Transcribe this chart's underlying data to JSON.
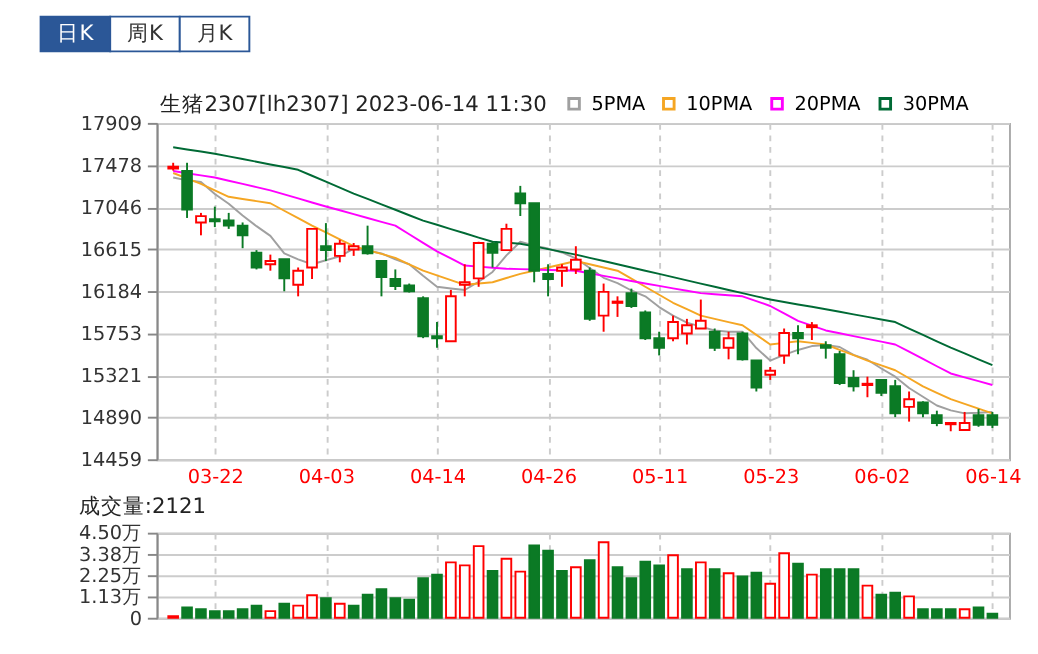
{
  "chart_data": [
    {
      "type": "candlestick",
      "title": "生猪2307[lh2307] 2023-06-14 11:30",
      "annotations": [
        "日K",
        "周K",
        "月K"
      ],
      "categories": [
        null,
        null,
        null,
        "03-22",
        null,
        null,
        null,
        null,
        null,
        null,
        null,
        "04-03",
        null,
        null,
        null,
        null,
        null,
        null,
        null,
        "04-14",
        null,
        null,
        null,
        null,
        null,
        null,
        null,
        "04-26",
        null,
        null,
        null,
        null,
        null,
        null,
        null,
        "05-11",
        null,
        null,
        null,
        null,
        null,
        null,
        null,
        "05-23",
        null,
        null,
        null,
        null,
        null,
        null,
        null,
        "06-02",
        null,
        null,
        null,
        null,
        null,
        null,
        null,
        "06-14"
      ],
      "ohlc": [
        [
          17440,
          17500,
          17420,
          17460
        ],
        [
          17415,
          17500,
          16934,
          17020
        ],
        [
          16888,
          16986,
          16756,
          16953
        ],
        [
          16920,
          17050,
          16840,
          16900
        ],
        [
          16907,
          16986,
          16822,
          16855
        ],
        [
          16855,
          16888,
          16624,
          16756
        ],
        [
          16578,
          16604,
          16406,
          16426
        ],
        [
          16459,
          16558,
          16393,
          16492
        ],
        [
          16512,
          16512,
          16182,
          16314
        ],
        [
          16248,
          16426,
          16130,
          16393
        ],
        [
          16426,
          16822,
          16307,
          16822
        ],
        [
          16644,
          16881,
          16492,
          16604
        ],
        [
          16545,
          16710,
          16479,
          16670
        ],
        [
          16611,
          16677,
          16545,
          16644
        ],
        [
          16644,
          16855,
          16558,
          16571
        ],
        [
          16492,
          16492,
          16130,
          16327
        ],
        [
          16307,
          16406,
          16195,
          16235
        ],
        [
          16241,
          16261,
          16169,
          16182
        ],
        [
          16110,
          16130,
          15701,
          15721
        ],
        [
          15721,
          15866,
          15603,
          15701
        ],
        [
          15669,
          16196,
          15669,
          16130
        ],
        [
          16248,
          16459,
          16130,
          16274
        ],
        [
          16314,
          16690,
          16228,
          16677
        ],
        [
          16670,
          16690,
          16426,
          16578
        ],
        [
          16604,
          16875,
          16604,
          16822
        ],
        [
          17184,
          17263,
          16954,
          17085
        ],
        [
          17085,
          17085,
          16274,
          16393
        ],
        [
          16360,
          16459,
          16130,
          16307
        ],
        [
          16393,
          16459,
          16228,
          16426
        ],
        [
          16406,
          16644,
          16360,
          16505
        ],
        [
          16393,
          16426,
          15879,
          15899
        ],
        [
          15932,
          16261,
          15767,
          16176
        ],
        [
          16063,
          16130,
          15919,
          16076
        ],
        [
          16163,
          16209,
          16011,
          16031
        ],
        [
          15965,
          15985,
          15682,
          15701
        ],
        [
          15701,
          15767,
          15524,
          15603
        ],
        [
          15701,
          15932,
          15669,
          15866
        ],
        [
          15748,
          15899,
          15636,
          15833
        ],
        [
          15800,
          16097,
          15800,
          15879
        ],
        [
          15767,
          15800,
          15570,
          15603
        ],
        [
          15603,
          15767,
          15484,
          15701
        ],
        [
          15748,
          15767,
          15471,
          15484
        ],
        [
          15471,
          15471,
          15154,
          15194
        ],
        [
          15326,
          15405,
          15273,
          15366
        ],
        [
          15524,
          15800,
          15438,
          15754
        ],
        [
          15754,
          15833,
          15537,
          15701
        ],
        [
          15814,
          15866,
          15682,
          15833
        ],
        [
          15629,
          15669,
          15491,
          15603
        ],
        [
          15537,
          15570,
          15220,
          15240
        ],
        [
          15293,
          15372,
          15154,
          15207
        ],
        [
          15220,
          15306,
          15095,
          15233
        ],
        [
          15273,
          15273,
          15108,
          15141
        ],
        [
          15207,
          15273,
          14891,
          14930
        ],
        [
          14996,
          15154,
          14845,
          15075
        ],
        [
          15042,
          15055,
          14891,
          14930
        ],
        [
          14910,
          14957,
          14798,
          14831
        ],
        [
          14818,
          14831,
          14746,
          14831
        ],
        [
          14759,
          14944,
          14759,
          14831
        ],
        [
          14910,
          14976,
          14792,
          14812
        ],
        [
          14910,
          14944,
          14779,
          14812
        ]
      ],
      "colors": [
        "#ff0000",
        "#0b7a25",
        "#ff0000",
        "#0b7a25",
        "#0b7a25",
        "#0b7a25",
        "#0b7a25",
        "#ff0000",
        "#0b7a25",
        "#ff0000",
        "#ff0000",
        "#0b7a25",
        "#ff0000",
        "#ff0000",
        "#0b7a25",
        "#0b7a25",
        "#0b7a25",
        "#0b7a25",
        "#0b7a25",
        "#0b7a25",
        "#ff0000",
        "#ff0000",
        "#ff0000",
        "#0b7a25",
        "#ff0000",
        "#0b7a25",
        "#0b7a25",
        "#0b7a25",
        "#ff0000",
        "#ff0000",
        "#0b7a25",
        "#ff0000",
        "#ff0000",
        "#0b7a25",
        "#0b7a25",
        "#0b7a25",
        "#ff0000",
        "#ff0000",
        "#ff0000",
        "#0b7a25",
        "#ff0000",
        "#0b7a25",
        "#0b7a25",
        "#ff0000",
        "#ff0000",
        "#0b7a25",
        "#ff0000",
        "#0b7a25",
        "#0b7a25",
        "#0b7a25",
        "#ff0000",
        "#0b7a25",
        "#0b7a25",
        "#ff0000",
        "#0b7a25",
        "#0b7a25",
        "#ff0000",
        "#ff0000",
        "#0b7a25",
        "#0b7a25"
      ],
      "series": [
        {
          "name": "5PMA",
          "type": "line",
          "color": "#a0a0a0",
          "values": [
            17349,
            17320,
            17303,
            17180,
            17080,
            16960,
            16850,
            16750,
            16570,
            16510,
            16459,
            16500,
            16540,
            16620,
            16600,
            16570,
            16510,
            16459,
            16340,
            16228,
            16210,
            16195,
            16280,
            16380,
            16550,
            16690,
            16650,
            16620,
            16580,
            16520,
            16420,
            16320,
            16265,
            16190,
            16130,
            16020,
            15932,
            15860,
            15820,
            15780,
            15767,
            15767,
            15600,
            15471,
            15530,
            15580,
            15620,
            15630,
            15610,
            15530,
            15480,
            15390,
            15306,
            15190,
            15100,
            15010,
            14960,
            14930,
            14935,
            14944
          ]
        },
        {
          "name": "10PMA",
          "type": "line",
          "color": "#f5a623",
          "values": [
            17395,
            17339,
            17283,
            17217,
            17151,
            17129,
            17107,
            17085,
            17008,
            16932,
            16855,
            16785,
            16714,
            16644,
            16604,
            16565,
            16525,
            16459,
            16393,
            16345,
            16296,
            16248,
            16262,
            16275,
            16318,
            16360,
            16393,
            16426,
            16459,
            16492,
            16459,
            16426,
            16393,
            16311,
            16228,
            16146,
            16064,
            15998,
            15932,
            15899,
            15866,
            15833,
            15735,
            15636,
            15653,
            15669,
            15653,
            15636,
            15581,
            15526,
            15471,
            15422,
            15372,
            15290,
            15207,
            15141,
            15075,
            15027,
            14978,
            14930
          ]
        },
        {
          "name": "20PMA",
          "type": "line",
          "color": "#ff00ff",
          "values": [
            17415,
            17393,
            17371,
            17349,
            17316,
            17283,
            17250,
            17217,
            17176,
            17135,
            17093,
            17052,
            17013,
            16973,
            16934,
            16894,
            16855,
            16767,
            16679,
            16591,
            16519,
            16446,
            16435,
            16424,
            16413,
            16409,
            16405,
            16401,
            16397,
            16393,
            16367,
            16340,
            16314,
            16287,
            16261,
            16237,
            16212,
            16188,
            16163,
            16152,
            16141,
            16130,
            16081,
            16031,
            15955,
            15879,
            15830,
            15780,
            15751,
            15722,
            15694,
            15665,
            15636,
            15562,
            15488,
            15413,
            15339,
            15299,
            15260,
            15220
          ]
        },
        {
          "name": "30PMA",
          "type": "line",
          "color": "#006a35",
          "values": [
            17659,
            17637,
            17615,
            17593,
            17566,
            17538,
            17511,
            17483,
            17456,
            17428,
            17367,
            17306,
            17245,
            17184,
            17129,
            17073,
            17018,
            16962,
            16907,
            16864,
            16820,
            16777,
            16733,
            16690,
            16680,
            16670,
            16642,
            16614,
            16586,
            16558,
            16525,
            16492,
            16459,
            16426,
            16393,
            16360,
            16327,
            16294,
            16261,
            16228,
            16195,
            16163,
            16130,
            16097,
            16072,
            16047,
            16023,
            15998,
            15972,
            15945,
            15919,
            15892,
            15866,
            15800,
            15735,
            15669,
            15603,
            15544,
            15484,
            15425
          ]
        }
      ],
      "ylim": [
        14459,
        17909
      ],
      "yticks": [
        14459,
        14890,
        15321,
        15753,
        16184,
        16615,
        17046,
        17478,
        17909
      ],
      "grid": true,
      "legend": "top right"
    },
    {
      "type": "bar",
      "title": "成交量:2121",
      "categories": [
        null,
        null,
        null,
        null,
        null,
        null,
        null,
        null,
        null,
        null,
        null,
        null,
        null,
        null,
        null,
        null,
        null,
        null,
        null,
        null,
        null,
        null,
        null,
        null,
        null,
        null,
        null,
        null,
        null,
        null,
        null,
        null,
        null,
        null,
        null,
        null,
        null,
        null,
        null,
        null,
        null,
        null,
        null,
        null,
        null,
        null,
        null,
        null,
        null,
        null,
        null,
        null,
        null,
        null,
        null,
        null,
        null,
        null,
        null,
        null
      ],
      "values": [
        0.08,
        0.55,
        0.45,
        0.35,
        0.35,
        0.45,
        0.64,
        0.35,
        0.74,
        0.64,
        1.19,
        1.03,
        0.74,
        0.64,
        1.22,
        1.51,
        1.03,
        0.96,
        2.09,
        2.28,
        2.93,
        2.77,
        3.79,
        2.48,
        3.12,
        2.44,
        3.83,
        3.54,
        2.48,
        2.67,
        3.05,
        3.99,
        2.67,
        2.09,
        2.96,
        2.77,
        3.31,
        2.57,
        2.93,
        2.57,
        2.35,
        2.19,
        2.38,
        1.8,
        3.41,
        2.86,
        2.28,
        2.57,
        2.57,
        2.57,
        1.7,
        1.22,
        1.32,
        1.13,
        0.45,
        0.45,
        0.45,
        0.45,
        0.55,
        0.21
      ],
      "colors": [
        "#ff0000",
        "#0b7a25",
        "#0b7a25",
        "#0b7a25",
        "#0b7a25",
        "#0b7a25",
        "#0b7a25",
        "#ff0000",
        "#0b7a25",
        "#ff0000",
        "#ff0000",
        "#0b7a25",
        "#ff0000",
        "#0b7a25",
        "#0b7a25",
        "#0b7a25",
        "#0b7a25",
        "#0b7a25",
        "#0b7a25",
        "#0b7a25",
        "#ff0000",
        "#ff0000",
        "#ff0000",
        "#0b7a25",
        "#ff0000",
        "#ff0000",
        "#0b7a25",
        "#0b7a25",
        "#0b7a25",
        "#ff0000",
        "#0b7a25",
        "#ff0000",
        "#0b7a25",
        "#0b7a25",
        "#0b7a25",
        "#0b7a25",
        "#ff0000",
        "#0b7a25",
        "#ff0000",
        "#0b7a25",
        "#ff0000",
        "#0b7a25",
        "#0b7a25",
        "#ff0000",
        "#ff0000",
        "#0b7a25",
        "#ff0000",
        "#0b7a25",
        "#0b7a25",
        "#0b7a25",
        "#ff0000",
        "#0b7a25",
        "#0b7a25",
        "#ff0000",
        "#0b7a25",
        "#0b7a25",
        "#0b7a25",
        "#ff0000",
        "#0b7a25",
        "#0b7a25"
      ],
      "ylim": [
        0,
        4.5
      ],
      "yticks": [
        0,
        {
          "value": 1.13,
          "label": "1.13万"
        },
        {
          "value": 2.25,
          "label": "2.25万"
        },
        {
          "value": 3.38,
          "label": "3.38万"
        },
        {
          "value": 4.5,
          "label": "4.50万"
        }
      ],
      "grid": true,
      "tick_labels": "y"
    }
  ]
}
